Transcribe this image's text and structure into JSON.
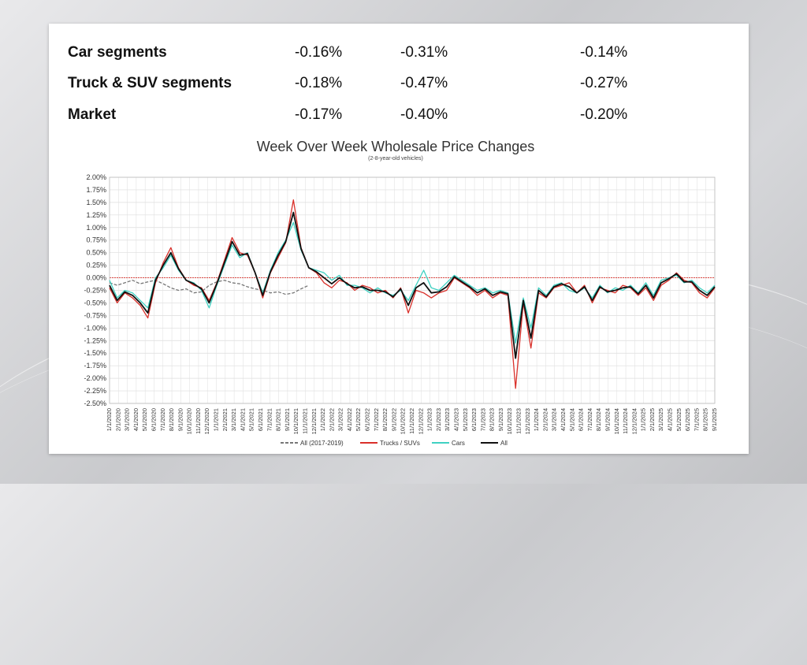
{
  "table": {
    "rows": [
      {
        "label": "Car segments",
        "v1": "-0.16%",
        "v2": "-0.31%",
        "v3": "-0.14%"
      },
      {
        "label": "Truck & SUV segments",
        "v1": "-0.18%",
        "v2": "-0.47%",
        "v3": "-0.27%"
      },
      {
        "label": "Market",
        "v1": "-0.17%",
        "v2": "-0.40%",
        "v3": "-0.20%"
      }
    ]
  },
  "chart_data": {
    "type": "line",
    "title": "Week Over Week Wholesale Price Changes",
    "subtitle": "(2-8-year-old vehicles)",
    "ylim": [
      -2.5,
      2.0
    ],
    "y_ticks": [
      "2.00%",
      "1.75%",
      "1.50%",
      "1.25%",
      "1.00%",
      "0.75%",
      "0.50%",
      "0.25%",
      "0.00%",
      "-0.25%",
      "-0.50%",
      "-0.75%",
      "-1.00%",
      "-1.25%",
      "-1.50%",
      "-1.75%",
      "-2.00%",
      "-2.25%",
      "-2.50%"
    ],
    "x_ticks": [
      "1/1/2020",
      "2/1/2020",
      "3/1/2020",
      "4/1/2020",
      "5/1/2020",
      "6/1/2020",
      "7/1/2020",
      "8/1/2020",
      "9/1/2020",
      "10/1/2020",
      "11/1/2020",
      "12/1/2020",
      "1/1/2021",
      "2/1/2021",
      "3/1/2021",
      "4/1/2021",
      "5/1/2021",
      "6/1/2021",
      "7/1/2021",
      "8/1/2021",
      "9/1/2021",
      "10/1/2021",
      "11/1/2021",
      "12/1/2021",
      "1/1/2022",
      "2/1/2022",
      "3/1/2022",
      "4/1/2022",
      "5/1/2022",
      "6/1/2022",
      "7/1/2022",
      "8/1/2022",
      "9/1/2022",
      "10/1/2022",
      "11/1/2022",
      "12/1/2022",
      "1/1/2023",
      "2/1/2023",
      "3/1/2023",
      "4/1/2023",
      "5/1/2023",
      "6/1/2023",
      "7/1/2023",
      "8/1/2023",
      "9/1/2023",
      "10/1/2023",
      "11/1/2023",
      "12/1/2023",
      "1/1/2024",
      "2/1/2024",
      "3/1/2024",
      "4/1/2024",
      "5/1/2024",
      "6/1/2024",
      "7/1/2024",
      "8/1/2024",
      "9/1/2024",
      "10/1/2024",
      "11/1/2024",
      "12/1/2024",
      "1/1/2025",
      "2/1/2025",
      "3/1/2025",
      "4/1/2025",
      "5/1/2025",
      "6/1/2025",
      "7/1/2025",
      "8/1/2025",
      "9/1/2025"
    ],
    "grid": true,
    "legend_position": "bottom",
    "series": [
      {
        "name": "All (2017-2019)",
        "color": "#777777",
        "style": "dashed",
        "points": [
          [
            0,
            -0.1
          ],
          [
            1,
            -0.15
          ],
          [
            2,
            -0.1
          ],
          [
            3,
            -0.05
          ],
          [
            4,
            -0.12
          ],
          [
            5,
            -0.08
          ],
          [
            6,
            -0.05
          ],
          [
            7,
            -0.12
          ],
          [
            8,
            -0.2
          ],
          [
            9,
            -0.25
          ],
          [
            10,
            -0.22
          ],
          [
            11,
            -0.3
          ],
          [
            12,
            -0.28
          ],
          [
            13,
            -0.15
          ],
          [
            14,
            -0.08
          ],
          [
            15,
            -0.05
          ],
          [
            16,
            -0.1
          ],
          [
            17,
            -0.12
          ],
          [
            18,
            -0.18
          ],
          [
            19,
            -0.22
          ],
          [
            20,
            -0.25
          ],
          [
            21,
            -0.3
          ],
          [
            22,
            -0.28
          ],
          [
            23,
            -0.33
          ],
          [
            24,
            -0.3
          ],
          [
            25,
            -0.22
          ],
          [
            26,
            -0.15
          ]
        ]
      },
      {
        "name": "Trucks / SUVs",
        "color": "#d9302a",
        "style": "solid",
        "points": [
          [
            0,
            -0.2
          ],
          [
            1,
            -0.5
          ],
          [
            2,
            -0.3
          ],
          [
            3,
            -0.4
          ],
          [
            4,
            -0.55
          ],
          [
            5,
            -0.8
          ],
          [
            6,
            -0.1
          ],
          [
            7,
            0.3
          ],
          [
            8,
            0.6
          ],
          [
            9,
            0.2
          ],
          [
            10,
            -0.05
          ],
          [
            11,
            -0.15
          ],
          [
            12,
            -0.2
          ],
          [
            13,
            -0.45
          ],
          [
            14,
            -0.1
          ],
          [
            15,
            0.35
          ],
          [
            16,
            0.8
          ],
          [
            17,
            0.5
          ],
          [
            18,
            0.45
          ],
          [
            19,
            0.1
          ],
          [
            20,
            -0.4
          ],
          [
            21,
            0.1
          ],
          [
            22,
            0.4
          ],
          [
            23,
            0.7
          ],
          [
            24,
            1.55
          ],
          [
            25,
            0.6
          ],
          [
            26,
            0.2
          ],
          [
            27,
            0.1
          ],
          [
            28,
            -0.1
          ],
          [
            29,
            -0.2
          ],
          [
            30,
            -0.05
          ],
          [
            31,
            -0.1
          ],
          [
            32,
            -0.25
          ],
          [
            33,
            -0.15
          ],
          [
            34,
            -0.2
          ],
          [
            35,
            -0.3
          ],
          [
            36,
            -0.25
          ],
          [
            37,
            -0.4
          ],
          [
            38,
            -0.2
          ],
          [
            39,
            -0.7
          ],
          [
            40,
            -0.25
          ],
          [
            41,
            -0.3
          ],
          [
            42,
            -0.4
          ],
          [
            43,
            -0.3
          ],
          [
            44,
            -0.25
          ],
          [
            45,
            0.0
          ],
          [
            46,
            -0.1
          ],
          [
            47,
            -0.2
          ],
          [
            48,
            -0.35
          ],
          [
            49,
            -0.25
          ],
          [
            50,
            -0.4
          ],
          [
            51,
            -0.3
          ],
          [
            52,
            -0.35
          ],
          [
            53,
            -2.2
          ],
          [
            54,
            -0.5
          ],
          [
            55,
            -1.4
          ],
          [
            56,
            -0.3
          ],
          [
            57,
            -0.4
          ],
          [
            58,
            -0.2
          ],
          [
            59,
            -0.15
          ],
          [
            60,
            -0.1
          ],
          [
            61,
            -0.3
          ],
          [
            62,
            -0.15
          ],
          [
            63,
            -0.5
          ],
          [
            64,
            -0.2
          ],
          [
            65,
            -0.25
          ],
          [
            66,
            -0.3
          ],
          [
            67,
            -0.15
          ],
          [
            68,
            -0.2
          ],
          [
            69,
            -0.35
          ],
          [
            70,
            -0.2
          ],
          [
            71,
            -0.45
          ],
          [
            72,
            -0.15
          ],
          [
            73,
            -0.05
          ],
          [
            74,
            0.1
          ],
          [
            75,
            -0.05
          ],
          [
            76,
            -0.1
          ],
          [
            77,
            -0.3
          ],
          [
            78,
            -0.4
          ],
          [
            79,
            -0.2
          ]
        ]
      },
      {
        "name": "Cars",
        "color": "#3fd1c2",
        "style": "solid",
        "points": [
          [
            0,
            -0.05
          ],
          [
            1,
            -0.4
          ],
          [
            2,
            -0.25
          ],
          [
            3,
            -0.3
          ],
          [
            4,
            -0.45
          ],
          [
            5,
            -0.6
          ],
          [
            6,
            0.0
          ],
          [
            7,
            0.2
          ],
          [
            8,
            0.45
          ],
          [
            9,
            0.15
          ],
          [
            10,
            -0.05
          ],
          [
            11,
            -0.1
          ],
          [
            12,
            -0.25
          ],
          [
            13,
            -0.6
          ],
          [
            14,
            -0.15
          ],
          [
            15,
            0.25
          ],
          [
            16,
            0.65
          ],
          [
            17,
            0.4
          ],
          [
            18,
            0.5
          ],
          [
            19,
            0.1
          ],
          [
            20,
            -0.3
          ],
          [
            21,
            0.15
          ],
          [
            22,
            0.5
          ],
          [
            23,
            0.75
          ],
          [
            24,
            1.1
          ],
          [
            25,
            0.55
          ],
          [
            26,
            0.2
          ],
          [
            27,
            0.15
          ],
          [
            28,
            0.1
          ],
          [
            29,
            -0.05
          ],
          [
            30,
            0.05
          ],
          [
            31,
            -0.15
          ],
          [
            32,
            -0.15
          ],
          [
            33,
            -0.2
          ],
          [
            34,
            -0.3
          ],
          [
            35,
            -0.2
          ],
          [
            36,
            -0.3
          ],
          [
            37,
            -0.35
          ],
          [
            38,
            -0.25
          ],
          [
            39,
            -0.45
          ],
          [
            40,
            -0.15
          ],
          [
            41,
            0.15
          ],
          [
            42,
            -0.2
          ],
          [
            43,
            -0.25
          ],
          [
            44,
            -0.1
          ],
          [
            45,
            0.05
          ],
          [
            46,
            -0.05
          ],
          [
            47,
            -0.15
          ],
          [
            48,
            -0.25
          ],
          [
            49,
            -0.2
          ],
          [
            50,
            -0.3
          ],
          [
            51,
            -0.25
          ],
          [
            52,
            -0.3
          ],
          [
            53,
            -1.3
          ],
          [
            54,
            -0.4
          ],
          [
            55,
            -1.0
          ],
          [
            56,
            -0.2
          ],
          [
            57,
            -0.35
          ],
          [
            58,
            -0.15
          ],
          [
            59,
            -0.1
          ],
          [
            60,
            -0.25
          ],
          [
            61,
            -0.3
          ],
          [
            62,
            -0.2
          ],
          [
            63,
            -0.4
          ],
          [
            64,
            -0.15
          ],
          [
            65,
            -0.3
          ],
          [
            66,
            -0.2
          ],
          [
            67,
            -0.25
          ],
          [
            68,
            -0.15
          ],
          [
            69,
            -0.3
          ],
          [
            70,
            -0.1
          ],
          [
            71,
            -0.35
          ],
          [
            72,
            -0.05
          ],
          [
            73,
            0.0
          ],
          [
            74,
            0.05
          ],
          [
            75,
            -0.1
          ],
          [
            76,
            -0.05
          ],
          [
            77,
            -0.2
          ],
          [
            78,
            -0.3
          ],
          [
            79,
            -0.15
          ]
        ]
      },
      {
        "name": "All",
        "color": "#111111",
        "style": "solid",
        "points": [
          [
            0,
            -0.15
          ],
          [
            1,
            -0.45
          ],
          [
            2,
            -0.28
          ],
          [
            3,
            -0.35
          ],
          [
            4,
            -0.5
          ],
          [
            5,
            -0.7
          ],
          [
            6,
            -0.05
          ],
          [
            7,
            0.25
          ],
          [
            8,
            0.5
          ],
          [
            9,
            0.18
          ],
          [
            10,
            -0.05
          ],
          [
            11,
            -0.12
          ],
          [
            12,
            -0.22
          ],
          [
            13,
            -0.5
          ],
          [
            14,
            -0.12
          ],
          [
            15,
            0.3
          ],
          [
            16,
            0.72
          ],
          [
            17,
            0.45
          ],
          [
            18,
            0.48
          ],
          [
            19,
            0.1
          ],
          [
            20,
            -0.35
          ],
          [
            21,
            0.12
          ],
          [
            22,
            0.45
          ],
          [
            23,
            0.72
          ],
          [
            24,
            1.3
          ],
          [
            25,
            0.58
          ],
          [
            26,
            0.2
          ],
          [
            27,
            0.12
          ],
          [
            28,
            0.0
          ],
          [
            29,
            -0.12
          ],
          [
            30,
            0.0
          ],
          [
            31,
            -0.12
          ],
          [
            32,
            -0.2
          ],
          [
            33,
            -0.18
          ],
          [
            34,
            -0.25
          ],
          [
            35,
            -0.25
          ],
          [
            36,
            -0.28
          ],
          [
            37,
            -0.38
          ],
          [
            38,
            -0.22
          ],
          [
            39,
            -0.55
          ],
          [
            40,
            -0.2
          ],
          [
            41,
            -0.1
          ],
          [
            42,
            -0.3
          ],
          [
            43,
            -0.28
          ],
          [
            44,
            -0.18
          ],
          [
            45,
            0.02
          ],
          [
            46,
            -0.08
          ],
          [
            47,
            -0.18
          ],
          [
            48,
            -0.3
          ],
          [
            49,
            -0.22
          ],
          [
            50,
            -0.35
          ],
          [
            51,
            -0.28
          ],
          [
            52,
            -0.32
          ],
          [
            53,
            -1.6
          ],
          [
            54,
            -0.45
          ],
          [
            55,
            -1.2
          ],
          [
            56,
            -0.25
          ],
          [
            57,
            -0.38
          ],
          [
            58,
            -0.18
          ],
          [
            59,
            -0.12
          ],
          [
            60,
            -0.18
          ],
          [
            61,
            -0.3
          ],
          [
            62,
            -0.18
          ],
          [
            63,
            -0.45
          ],
          [
            64,
            -0.18
          ],
          [
            65,
            -0.28
          ],
          [
            66,
            -0.25
          ],
          [
            67,
            -0.2
          ],
          [
            68,
            -0.18
          ],
          [
            69,
            -0.32
          ],
          [
            70,
            -0.15
          ],
          [
            71,
            -0.4
          ],
          [
            72,
            -0.1
          ],
          [
            73,
            -0.02
          ],
          [
            74,
            0.08
          ],
          [
            75,
            -0.08
          ],
          [
            76,
            -0.08
          ],
          [
            77,
            -0.25
          ],
          [
            78,
            -0.35
          ],
          [
            79,
            -0.18
          ]
        ]
      }
    ]
  }
}
